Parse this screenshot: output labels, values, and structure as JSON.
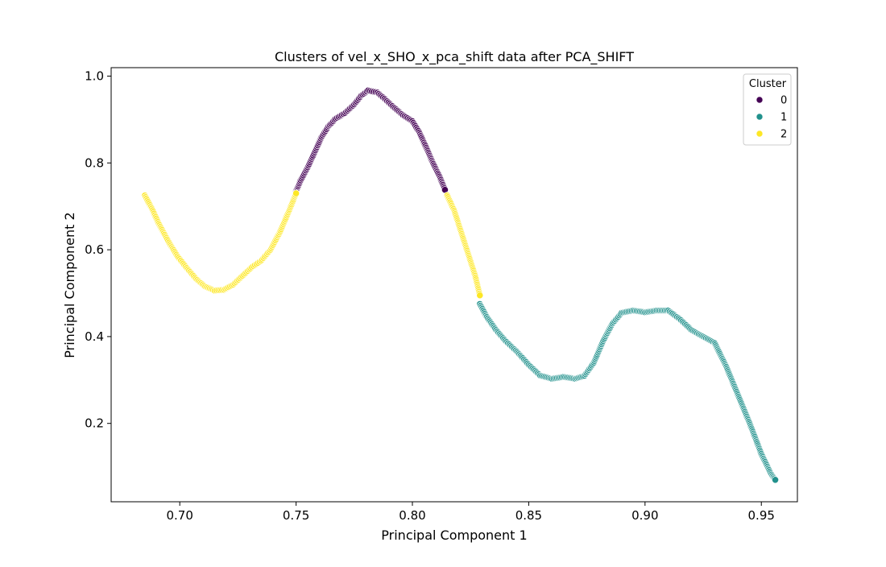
{
  "chart_data": {
    "type": "scatter",
    "title": "Clusters of vel_x_SHO_x_pca_shift data after PCA_SHIFT",
    "xlabel": "Principal Component 1",
    "ylabel": "Principal Component 2",
    "xlim": [
      0.6705,
      0.9655
    ],
    "ylim": [
      0.0195,
      1.0195
    ],
    "xticks": [
      0.7,
      0.75,
      0.8,
      0.85,
      0.9,
      0.95
    ],
    "xtick_labels": [
      "0.70",
      "0.75",
      "0.80",
      "0.85",
      "0.90",
      "0.95"
    ],
    "yticks": [
      0.2,
      0.4,
      0.6,
      0.8,
      1.0
    ],
    "ytick_labels": [
      "0.2",
      "0.4",
      "0.6",
      "0.8",
      "1.0"
    ],
    "grid": false,
    "legend": {
      "title": "Cluster",
      "position": "top-right",
      "entries": [
        {
          "label": "0",
          "color": "#440154"
        },
        {
          "label": "1",
          "color": "#21918c"
        },
        {
          "label": "2",
          "color": "#fde725"
        }
      ]
    },
    "series": [
      {
        "name": "0",
        "color": "#440154",
        "points": [
          [
            0.75,
            0.735
          ],
          [
            0.752,
            0.76
          ],
          [
            0.755,
            0.79
          ],
          [
            0.758,
            0.825
          ],
          [
            0.761,
            0.86
          ],
          [
            0.764,
            0.885
          ],
          [
            0.767,
            0.902
          ],
          [
            0.771,
            0.915
          ],
          [
            0.775,
            0.935
          ],
          [
            0.778,
            0.955
          ],
          [
            0.781,
            0.967
          ],
          [
            0.785,
            0.962
          ],
          [
            0.788,
            0.948
          ],
          [
            0.792,
            0.928
          ],
          [
            0.796,
            0.91
          ],
          [
            0.8,
            0.896
          ],
          [
            0.803,
            0.87
          ],
          [
            0.806,
            0.835
          ],
          [
            0.809,
            0.798
          ],
          [
            0.812,
            0.765
          ],
          [
            0.814,
            0.738
          ]
        ]
      },
      {
        "name": "1",
        "color": "#21918c",
        "points": [
          [
            0.829,
            0.475
          ],
          [
            0.832,
            0.445
          ],
          [
            0.836,
            0.415
          ],
          [
            0.84,
            0.39
          ],
          [
            0.845,
            0.365
          ],
          [
            0.85,
            0.335
          ],
          [
            0.855,
            0.31
          ],
          [
            0.86,
            0.303
          ],
          [
            0.865,
            0.307
          ],
          [
            0.87,
            0.303
          ],
          [
            0.874,
            0.31
          ],
          [
            0.878,
            0.34
          ],
          [
            0.882,
            0.39
          ],
          [
            0.886,
            0.43
          ],
          [
            0.89,
            0.455
          ],
          [
            0.895,
            0.46
          ],
          [
            0.9,
            0.456
          ],
          [
            0.905,
            0.46
          ],
          [
            0.91,
            0.46
          ],
          [
            0.915,
            0.44
          ],
          [
            0.92,
            0.415
          ],
          [
            0.925,
            0.4
          ],
          [
            0.93,
            0.385
          ],
          [
            0.935,
            0.33
          ],
          [
            0.94,
            0.265
          ],
          [
            0.945,
            0.2
          ],
          [
            0.95,
            0.13
          ],
          [
            0.954,
            0.085
          ],
          [
            0.956,
            0.07
          ]
        ]
      },
      {
        "name": "2",
        "color": "#fde725",
        "points": [
          [
            0.685,
            0.725
          ],
          [
            0.688,
            0.695
          ],
          [
            0.691,
            0.66
          ],
          [
            0.695,
            0.62
          ],
          [
            0.699,
            0.585
          ],
          [
            0.703,
            0.558
          ],
          [
            0.707,
            0.533
          ],
          [
            0.711,
            0.515
          ],
          [
            0.715,
            0.506
          ],
          [
            0.719,
            0.508
          ],
          [
            0.723,
            0.52
          ],
          [
            0.727,
            0.54
          ],
          [
            0.731,
            0.56
          ],
          [
            0.735,
            0.575
          ],
          [
            0.739,
            0.6
          ],
          [
            0.743,
            0.64
          ],
          [
            0.747,
            0.69
          ],
          [
            0.75,
            0.73
          ],
          [
            0.815,
            0.725
          ],
          [
            0.818,
            0.69
          ],
          [
            0.821,
            0.64
          ],
          [
            0.824,
            0.59
          ],
          [
            0.827,
            0.54
          ],
          [
            0.829,
            0.495
          ]
        ]
      }
    ]
  }
}
